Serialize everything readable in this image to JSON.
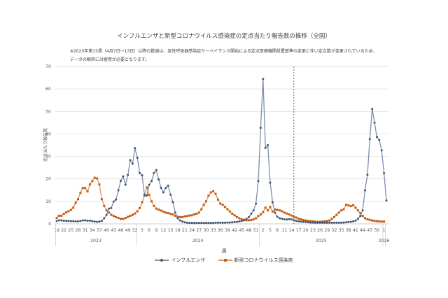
{
  "title": "インフルエンザと新型コロナウイルス感染症の定点当たり報告数の推移（全国）",
  "notes": [
    "※2025年第15週（4月7日～13日）以降の数値は、急性呼吸器感染症サーベイランス開始による定点医療機関設置基準の変更に伴い定点数が変更されているため、",
    "データの解釈には留意が必要となります。"
  ],
  "colors": {
    "influenza": "#44546A",
    "covid": "#C55A11",
    "grid": "#D9D9D9",
    "axis": "#BFBFBF",
    "divider": "#404040"
  },
  "chart_data": {
    "type": "line",
    "title": "インフルエンザと新型コロナウイルス感染症の定点当たり報告数の推移（全国）",
    "xlabel": "週",
    "ylabel": "定点当たり報告数",
    "ylim": [
      0,
      70
    ],
    "yticks": [
      0,
      10,
      20,
      30,
      40,
      50,
      60,
      70
    ],
    "grid": true,
    "legend_position": "bottom",
    "year_groups": [
      {
        "label": "2023",
        "start_index": 0,
        "count": 34
      },
      {
        "label": "2024",
        "start_index": 34,
        "count": 52
      },
      {
        "label": "2025",
        "start_index": 86,
        "count": 52
      },
      {
        "label": "2026",
        "start_index": 138,
        "count": 1
      }
    ],
    "x_tick_labels": [
      "19",
      "22",
      "25",
      "28",
      "31",
      "34",
      "37",
      "40",
      "43",
      "46",
      "49",
      "52",
      "3",
      "6",
      "9",
      "12",
      "15",
      "18",
      "21",
      "24",
      "27",
      "30",
      "33",
      "36",
      "39",
      "42",
      "45",
      "48",
      "51",
      "2",
      "5",
      "8",
      "11",
      "14",
      "17",
      "20",
      "23",
      "26",
      "29",
      "32",
      "35",
      "38",
      "41",
      "44",
      "47",
      "50",
      "1"
    ],
    "annotation": {
      "type": "vertical-dashed-line",
      "at": "2025 week 15"
    },
    "series": [
      {
        "name": "インフルエンザ",
        "values": [
          1.2,
          1.6,
          1.5,
          1.4,
          1.3,
          1.3,
          1.2,
          1.2,
          1.1,
          1.1,
          1.3,
          1.5,
          1.5,
          1.4,
          1.4,
          1.2,
          1.0,
          0.9,
          1.0,
          1.3,
          2.5,
          4.0,
          6.8,
          7.0,
          9.9,
          10.8,
          14.9,
          19.1,
          21.1,
          17.4,
          21.7,
          28.3,
          26.7,
          33.7,
          29.4,
          22.6,
          21.6,
          12.9,
          12.6,
          17.4,
          19.0,
          22.6,
          23.9,
          19.7,
          16.0,
          14.0,
          16.0,
          17.0,
          13.0,
          9.7,
          5.0,
          2.5,
          1.5,
          1.0,
          0.7,
          0.5,
          0.4,
          0.4,
          0.4,
          0.4,
          0.4,
          0.4,
          0.4,
          0.4,
          0.4,
          0.4,
          0.4,
          0.5,
          0.5,
          0.5,
          0.5,
          0.5,
          0.6,
          0.6,
          0.7,
          0.8,
          0.9,
          1.1,
          1.3,
          1.6,
          2.2,
          3.0,
          4.5,
          6.0,
          9.0,
          19.0,
          42.7,
          64.4,
          33.8,
          35.0,
          18.3,
          9.6,
          5.0,
          3.2,
          2.5,
          2.2,
          2.0,
          2.0,
          2.1,
          2.0,
          1.6,
          1.3,
          1.1,
          1.0,
          0.9,
          0.8,
          0.7,
          0.6,
          0.6,
          0.5,
          0.5,
          0.5,
          0.5,
          0.5,
          0.5,
          0.5,
          0.5,
          0.5,
          0.5,
          0.5,
          0.5,
          0.6,
          0.7,
          0.8,
          0.9,
          1.1,
          1.4,
          2.2,
          3.5,
          6.0,
          14.9,
          21.8,
          37.7,
          51.1,
          45.0,
          38.6,
          37.3,
          32.7,
          22.5,
          10.4
        ]
      },
      {
        "name": "新型コロナウイルス感染症",
        "values": [
          2.6,
          3.6,
          3.6,
          4.5,
          5.1,
          5.6,
          6.2,
          7.2,
          9.4,
          11.0,
          13.8,
          16.0,
          15.9,
          14.4,
          17.5,
          19.0,
          20.5,
          20.2,
          17.5,
          11.0,
          8.0,
          6.0,
          5.0,
          4.0,
          3.5,
          3.0,
          2.6,
          2.2,
          2.2,
          2.6,
          3.1,
          3.6,
          4.0,
          4.6,
          5.6,
          7.0,
          9.6,
          12.5,
          16.2,
          12.9,
          10.0,
          8.0,
          6.8,
          6.3,
          5.9,
          5.4,
          5.0,
          4.8,
          4.4,
          4.2,
          3.6,
          3.2,
          3.0,
          3.0,
          3.3,
          3.5,
          3.7,
          3.8,
          4.2,
          4.5,
          5.0,
          6.5,
          8.5,
          10.0,
          12.5,
          14.0,
          14.5,
          13.3,
          10.8,
          9.0,
          8.5,
          7.5,
          6.5,
          5.5,
          4.5,
          3.8,
          3.0,
          2.5,
          2.0,
          1.8,
          1.6,
          1.6,
          1.7,
          2.0,
          2.5,
          3.5,
          4.2,
          5.2,
          7.2,
          6.0,
          7.5,
          5.5,
          6.4,
          6.2,
          6.0,
          5.6,
          5.0,
          4.6,
          4.2,
          3.7,
          3.2,
          2.8,
          2.3,
          2.0,
          1.7,
          1.5,
          1.3,
          1.2,
          1.1,
          1.0,
          0.9,
          0.9,
          1.0,
          1.1,
          1.2,
          1.5,
          2.2,
          3.0,
          4.0,
          5.0,
          6.0,
          6.5,
          8.5,
          8.2,
          7.9,
          8.3,
          7.2,
          6.0,
          4.8,
          3.5,
          2.5,
          2.0,
          1.8,
          1.5,
          1.3,
          1.2,
          1.1,
          1.0,
          1.0
        ]
      }
    ]
  },
  "legend": [
    {
      "label": "インフルエンザ"
    },
    {
      "label": "新型コロナウイルス感染症"
    }
  ],
  "axis": {
    "xlabel": "週",
    "ylabel": "定点当たり報告数"
  }
}
